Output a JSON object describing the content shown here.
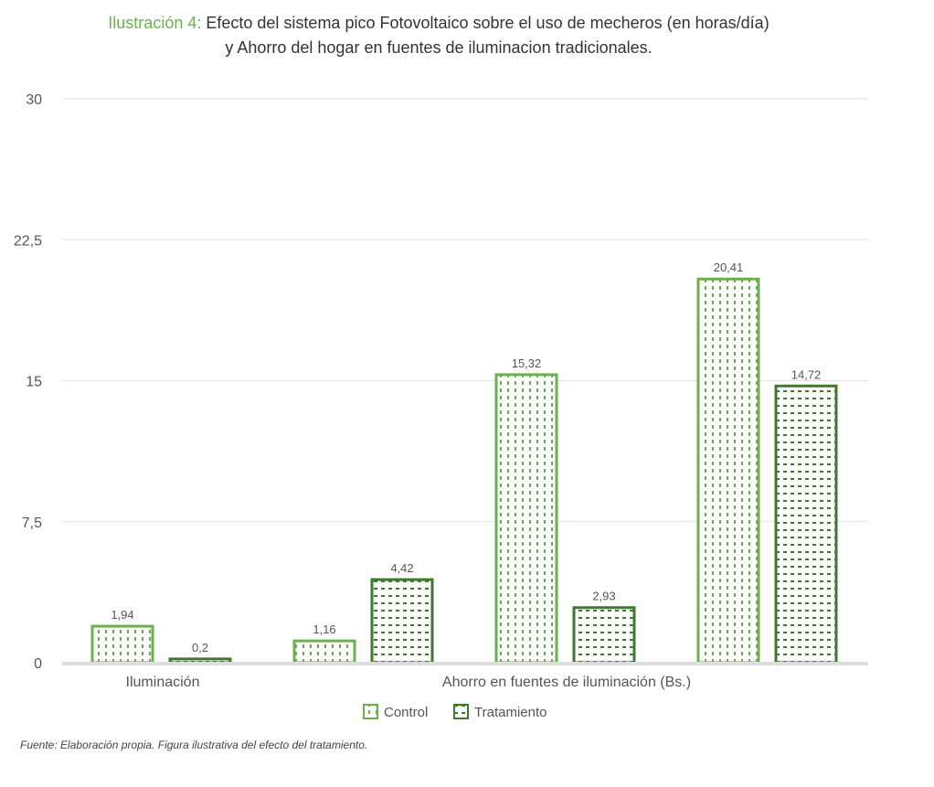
{
  "title": {
    "figure_label": "Ilustración 4:",
    "line1": "Efecto del sistema pico Fotovoltaico sobre el uso de mecheros (en horas/día)",
    "line2": "y Ahorro del hogar en fuentes de iluminacion tradicionales."
  },
  "source": "Fuente: Elaboración propia. Figura ilustrativa del efecto del tratamiento.",
  "chart_data": {
    "type": "bar",
    "categories": [
      "Iluminación",
      "",
      "Ahorro en fuentes de iluminación (Bs.)",
      ""
    ],
    "series": [
      {
        "name": "Control",
        "values": [
          1.94,
          1.16,
          15.32,
          20.41
        ],
        "labels": [
          "1,94",
          "1,16",
          "15,32",
          "20,41"
        ],
        "color": "#6ab04c"
      },
      {
        "name": "Tratamiento",
        "values": [
          0.2,
          4.42,
          2.93,
          14.72
        ],
        "labels": [
          "0,2",
          "4,42",
          "2,93",
          "14,72"
        ],
        "color": "#3d7a2b"
      }
    ],
    "ylim": [
      0,
      30
    ],
    "yticks": [
      0,
      7.5,
      15,
      22.5,
      30
    ],
    "ytick_labels": [
      "0",
      "7,5",
      "15",
      "22,5",
      "30"
    ],
    "grid": true,
    "legend": "bottom"
  }
}
